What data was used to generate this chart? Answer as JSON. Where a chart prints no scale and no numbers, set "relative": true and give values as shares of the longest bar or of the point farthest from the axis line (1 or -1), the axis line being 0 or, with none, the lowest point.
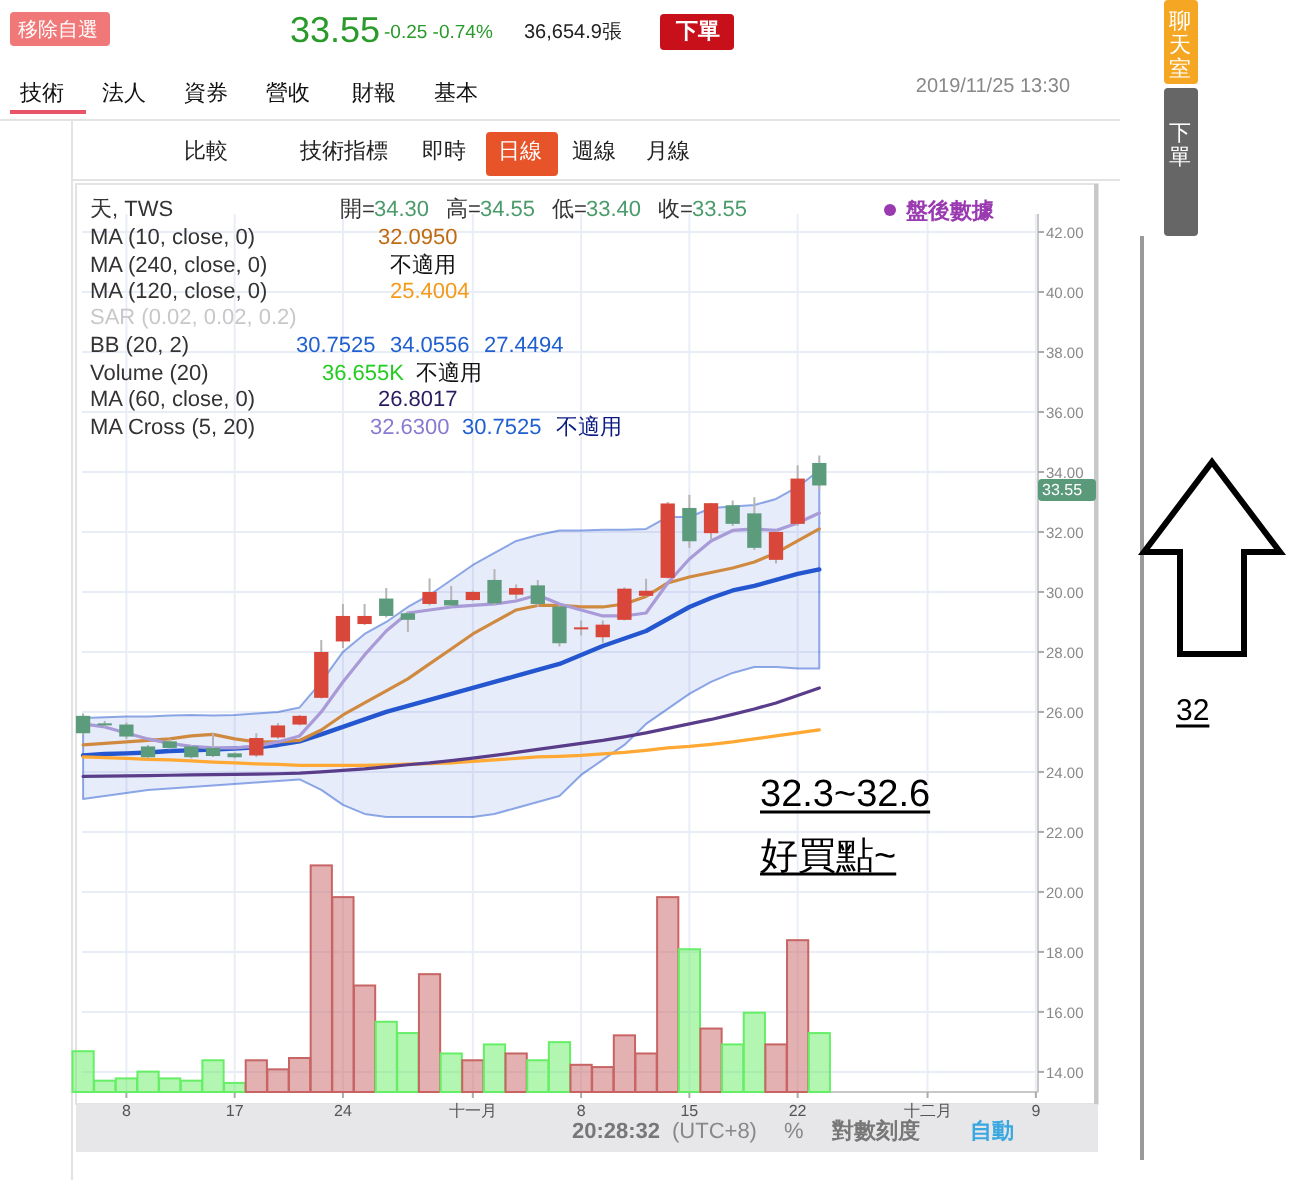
{
  "chart_data": [
    {
      "type": "candlestick",
      "tick_labels": "y",
      "categories": [
        null,
        null,
        null,
        null,
        null,
        null,
        null,
        null,
        null,
        null,
        null,
        null,
        null,
        null,
        null,
        null,
        null,
        null,
        null,
        null,
        null,
        null,
        null,
        null,
        null,
        null,
        null,
        null,
        null,
        null,
        null,
        null,
        null,
        null,
        null,
        null,
        null,
        null,
        null,
        null,
        null,
        null,
        null,
        null,
        null
      ],
      "ohlc": [
        [
          25.87,
          25.95,
          25.25,
          25.29
        ],
        [
          25.62,
          25.7,
          25.5,
          25.58
        ],
        [
          25.58,
          25.65,
          25.1,
          25.18
        ],
        [
          24.85,
          24.9,
          24.45,
          24.49
        ],
        [
          25.02,
          25.1,
          24.75,
          24.8
        ],
        [
          24.85,
          24.9,
          24.45,
          24.49
        ],
        [
          24.8,
          25.29,
          24.5,
          24.53
        ],
        [
          24.62,
          24.65,
          24.45,
          24.49
        ],
        [
          24.55,
          25.29,
          24.5,
          25.13
        ],
        [
          25.15,
          25.63,
          25.1,
          25.55
        ],
        [
          25.58,
          25.9,
          25.55,
          25.87
        ],
        [
          26.47,
          28.4,
          26.45,
          28.0
        ],
        [
          28.35,
          29.6,
          28.13,
          29.2
        ],
        [
          28.93,
          29.6,
          28.9,
          29.2
        ],
        [
          29.78,
          30.13,
          29.15,
          29.2
        ],
        [
          29.29,
          29.35,
          28.67,
          29.07
        ],
        [
          29.6,
          30.45,
          29.55,
          30.0
        ],
        [
          29.73,
          30.2,
          29.5,
          29.55
        ],
        [
          29.73,
          30.05,
          29.7,
          30.0
        ],
        [
          30.4,
          30.76,
          29.55,
          29.62
        ],
        [
          29.91,
          30.25,
          29.75,
          30.13
        ],
        [
          30.22,
          30.4,
          29.5,
          29.6
        ],
        [
          29.51,
          29.55,
          28.18,
          28.29
        ],
        [
          28.78,
          29.05,
          28.55,
          28.82
        ],
        [
          28.49,
          29.05,
          28.3,
          28.91
        ],
        [
          29.07,
          30.15,
          29.05,
          30.11
        ],
        [
          29.87,
          30.44,
          29.85,
          30.04
        ],
        [
          30.47,
          33.0,
          30.45,
          32.95
        ],
        [
          32.8,
          33.24,
          31.47,
          31.69
        ],
        [
          31.96,
          32.96,
          31.75,
          32.96
        ],
        [
          32.89,
          33.05,
          32.2,
          32.27
        ],
        [
          32.62,
          33.16,
          31.4,
          31.47
        ],
        [
          31.07,
          32.05,
          30.95,
          32.0
        ],
        [
          32.27,
          34.22,
          32.2,
          33.78
        ],
        [
          34.3,
          34.55,
          33.4,
          33.55
        ],
        null,
        null,
        null,
        null,
        null,
        null,
        null,
        null,
        null,
        null
      ],
      "colors": [
        "#5c9c7c",
        "#5c9c7c",
        "#5c9c7c",
        "#5c9c7c",
        "#5c9c7c",
        "#5c9c7c",
        "#5c9c7c",
        "#5c9c7c",
        "#d9473b",
        "#d9473b",
        "#d9473b",
        "#d9473b",
        "#d9473b",
        "#d9473b",
        "#5c9c7c",
        "#5c9c7c",
        "#d9473b",
        "#5c9c7c",
        "#d9473b",
        "#5c9c7c",
        "#d9473b",
        "#5c9c7c",
        "#5c9c7c",
        "#d9473b",
        "#d9473b",
        "#d9473b",
        "#d9473b",
        "#d9473b",
        "#5c9c7c",
        "#d9473b",
        "#5c9c7c",
        "#5c9c7c",
        "#d9473b",
        "#d9473b",
        "#5c9c7c",
        null,
        null,
        null,
        null,
        null,
        null,
        null,
        null,
        null,
        null
      ],
      "series": [
        {
          "type": "line",
          "color": "#2456d0",
          "values": [
            24.55,
            24.6,
            24.62,
            24.65,
            24.7,
            24.72,
            24.75,
            24.78,
            24.82,
            24.9,
            25.02,
            25.25,
            25.5,
            25.75,
            26.0,
            26.2,
            26.4,
            26.6,
            26.8,
            27.0,
            27.2,
            27.4,
            27.6,
            27.9,
            28.2,
            28.45,
            28.7,
            29.1,
            29.5,
            29.8,
            30.05,
            30.2,
            30.4,
            30.6,
            30.75,
            null,
            null,
            null,
            null,
            null,
            null,
            null,
            null,
            null,
            null
          ],
          "upper": [
            25.8,
            25.82,
            25.85,
            25.85,
            25.88,
            25.9,
            25.88,
            25.9,
            25.95,
            26.0,
            26.15,
            27.0,
            28.0,
            28.6,
            29.0,
            29.5,
            29.9,
            30.4,
            30.9,
            31.3,
            31.7,
            31.9,
            32.05,
            32.05,
            32.07,
            32.07,
            32.1,
            32.5,
            32.5,
            32.8,
            32.85,
            32.9,
            33.1,
            33.5,
            34.06,
            null,
            null,
            null,
            null,
            null,
            null,
            null,
            null,
            null,
            null
          ],
          "lower": [
            23.1,
            23.2,
            23.3,
            23.4,
            23.45,
            23.5,
            23.55,
            23.6,
            23.65,
            23.7,
            23.75,
            23.4,
            22.9,
            22.6,
            22.5,
            22.5,
            22.5,
            22.5,
            22.5,
            22.6,
            22.8,
            23.0,
            23.2,
            23.9,
            24.4,
            24.9,
            25.6,
            26.1,
            26.6,
            27.0,
            27.3,
            27.5,
            27.5,
            27.45,
            27.45,
            null,
            null,
            null,
            null,
            null,
            null,
            null,
            null,
            null,
            null
          ]
        },
        {
          "type": "line",
          "color": "#ffa833",
          "values": [
            24.5,
            24.48,
            24.45,
            24.42,
            24.4,
            24.37,
            24.33,
            24.3,
            24.27,
            24.25,
            24.22,
            24.22,
            24.22,
            24.22,
            24.24,
            24.26,
            24.28,
            24.3,
            24.35,
            24.4,
            24.45,
            24.5,
            24.52,
            24.55,
            24.6,
            24.65,
            24.72,
            24.8,
            24.85,
            24.92,
            25.0,
            25.1,
            25.2,
            25.3,
            25.4,
            null,
            null,
            null,
            null,
            null,
            null,
            null,
            null,
            null,
            null
          ]
        },
        {
          "type": "line",
          "color": "#5a3d8a",
          "values": [
            23.85,
            23.86,
            23.87,
            23.88,
            23.89,
            23.9,
            23.91,
            23.92,
            23.93,
            23.94,
            23.96,
            24.0,
            24.05,
            24.1,
            24.17,
            24.24,
            24.3,
            24.38,
            24.46,
            24.55,
            24.65,
            24.75,
            24.85,
            24.95,
            25.05,
            25.17,
            25.3,
            25.45,
            25.6,
            25.75,
            25.92,
            26.1,
            26.3,
            26.55,
            26.8,
            null,
            null,
            null,
            null,
            null,
            null,
            null,
            null,
            null,
            null
          ]
        },
        {
          "type": "line",
          "color": "#d08a40",
          "values": [
            24.9,
            24.95,
            25.0,
            25.05,
            25.1,
            25.2,
            25.25,
            25.1,
            25.0,
            25.0,
            25.05,
            25.4,
            25.9,
            26.3,
            26.7,
            27.1,
            27.6,
            28.1,
            28.6,
            29.0,
            29.4,
            29.55,
            29.55,
            29.5,
            29.5,
            29.6,
            29.85,
            30.3,
            30.5,
            30.65,
            30.8,
            31.0,
            31.3,
            31.7,
            32.1,
            null,
            null,
            null,
            null,
            null,
            null,
            null,
            null,
            null,
            null
          ]
        },
        {
          "type": "line",
          "color": "#a99ad8",
          "values": [
            25.6,
            25.5,
            25.3,
            25.1,
            24.95,
            24.85,
            24.8,
            24.8,
            24.85,
            25.0,
            25.2,
            26.0,
            27.0,
            27.9,
            28.7,
            29.3,
            29.4,
            29.5,
            29.55,
            29.6,
            29.7,
            29.9,
            29.6,
            29.4,
            29.2,
            29.2,
            29.3,
            30.3,
            31.1,
            31.7,
            32.05,
            32.1,
            32.05,
            32.3,
            32.63,
            null,
            null,
            null,
            null,
            null,
            null,
            null,
            null,
            null,
            null
          ]
        }
      ],
      "ylim": [
        13.33,
        42.6
      ],
      "yticks": [
        {
          "value": 14,
          "label": "14.00"
        },
        {
          "value": 16,
          "label": "16.00"
        },
        {
          "value": 18,
          "label": "18.00"
        },
        {
          "value": 20,
          "label": "20.00"
        },
        {
          "value": 22,
          "label": "22.00"
        },
        {
          "value": 24,
          "label": "24.00"
        },
        {
          "value": 26,
          "label": "26.00"
        },
        {
          "value": 28,
          "label": "28.00"
        },
        {
          "value": 30,
          "label": "30.00"
        },
        {
          "value": 32,
          "label": "32.00"
        },
        {
          "value": 34,
          "label": "34.00"
        },
        {
          "value": 36,
          "label": "36.00"
        },
        {
          "value": 38,
          "label": "38.00"
        },
        {
          "value": 40,
          "label": "40.00"
        },
        {
          "value": 42,
          "label": "42.00"
        }
      ],
      "grid": true,
      "annotations": [
        "移除自選",
        "33.55",
        "-0.25 -0.74%",
        "36,654.9張",
        "下單",
        "技術",
        "法人",
        "資券",
        "營收",
        "財報",
        "基本",
        "2019/11/25 13:30",
        "比較",
        "技術指標",
        "即時",
        "日線",
        "週線",
        "月線",
        "聊天室",
        "下單",
        "天, TWS",
        "開=",
        "34.30",
        "高=",
        "34.55",
        "低=",
        "33.40",
        "收=",
        "33.55",
        "MA (10, close, 0)",
        "32.0950",
        "MA (240, close, 0)",
        "不適用",
        "MA (120, close, 0)",
        "25.4004",
        "SAR (0.02, 0.02, 0.2)",
        "BB (20, 2)",
        "30.7525",
        "34.0556",
        "27.4494",
        "Volume (20)",
        "36.655K",
        "不適用",
        "MA (60, close, 0)",
        "26.8017",
        "MA Cross (5, 20)",
        "32.6300",
        "30.7525",
        "不適用",
        "盤後數據",
        "33.55",
        "32.3~32.6",
        "好買點~",
        "32",
        "20:28:32",
        "(UTC+8)",
        "%",
        "對數刻度",
        "自動"
      ]
    },
    {
      "type": "bar",
      "relative": true,
      "categories": [
        null,
        null,
        "8",
        null,
        null,
        null,
        null,
        "17",
        null,
        null,
        null,
        null,
        "24",
        null,
        null,
        null,
        null,
        null,
        "十一月",
        null,
        null,
        null,
        null,
        "8",
        null,
        null,
        null,
        null,
        "15",
        null,
        null,
        null,
        null,
        "22",
        null,
        null,
        null,
        null,
        null,
        "十二月",
        null,
        null,
        null,
        null,
        "9"
      ],
      "values": [
        0.18,
        0.05,
        0.06,
        0.09,
        0.06,
        0.05,
        0.14,
        0.04,
        0.14,
        0.1,
        0.15,
        1,
        0.86,
        0.47,
        0.31,
        0.26,
        0.52,
        0.17,
        0.14,
        0.21,
        0.17,
        0.14,
        0.22,
        0.12,
        0.11,
        0.25,
        0.17,
        0.86,
        0.63,
        0.28,
        0.21,
        0.35,
        0.21,
        0.67,
        0.26,
        null,
        null,
        null,
        null,
        null,
        null,
        null,
        null,
        null,
        null
      ],
      "colors": [
        "#66ee66",
        "#66ee66",
        "#66ee66",
        "#66ee66",
        "#66ee66",
        "#66ee66",
        "#66ee66",
        "#66ee66",
        "#c86464",
        "#c86464",
        "#c86464",
        "#c86464",
        "#c86464",
        "#c86464",
        "#66ee66",
        "#66ee66",
        "#c86464",
        "#66ee66",
        "#c86464",
        "#66ee66",
        "#c86464",
        "#66ee66",
        "#66ee66",
        "#c86464",
        "#c86464",
        "#c86464",
        "#c86464",
        "#c86464",
        "#66ee66",
        "#c86464",
        "#66ee66",
        "#66ee66",
        "#c86464",
        "#c86464",
        "#66ee66",
        null,
        null,
        null,
        null,
        null,
        null,
        null,
        null,
        null,
        null
      ]
    }
  ]
}
